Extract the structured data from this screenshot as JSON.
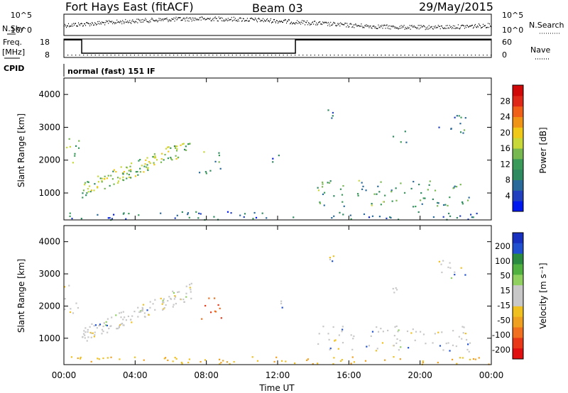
{
  "header": {
    "title": "Fort Hays East (fitACF)",
    "beam": "Beam 03",
    "date": "29/May/2015"
  },
  "labels": {
    "nsky": "N.Sky",
    "nsearch": "N.Search",
    "freq": "Freq.",
    "freq_unit": "[MHz]",
    "nave": "Nave",
    "cpid": "CPID",
    "cpid_value": "normal (fast) 151 IF"
  },
  "chart_data": [
    {
      "type": "line",
      "name": "noise-panel",
      "left_ticks": [
        "10^5",
        "10^0"
      ],
      "right_ticks": [
        "10^5",
        "10^0"
      ],
      "left_label": "N.Sky",
      "right_label": "N.Search"
    },
    {
      "type": "line",
      "name": "freq-nave-panel",
      "left_ticks": [
        "18",
        "8"
      ],
      "right_ticks": [
        "60",
        "0"
      ],
      "ylim_freq": [
        8,
        18
      ],
      "ylim_nave": [
        0,
        60
      ],
      "freq_steps": [
        {
          "x": 0.0,
          "y": 17.5
        },
        {
          "x": 1.0,
          "y": 17.5
        },
        {
          "x": 1.0,
          "y": 10.3
        },
        {
          "x": 13.0,
          "y": 10.3
        },
        {
          "x": 13.0,
          "y": 17.5
        },
        {
          "x": 24.0,
          "y": 17.5
        }
      ],
      "nave_level": 9
    },
    {
      "type": "heatmap",
      "name": "power-panel",
      "xlabel": "",
      "ylabel": "Slant Range [km]",
      "xlim": [
        0,
        24
      ],
      "ylim": [
        180,
        4500
      ],
      "yticks": [
        1000,
        2000,
        3000,
        4000
      ],
      "colorbar": {
        "label": "Power [dB]",
        "range": [
          0,
          32
        ],
        "ticks": [
          4,
          8,
          12,
          16,
          20,
          24,
          28
        ],
        "colors": [
          "#0018f0",
          "#2040c0",
          "#2a6a9a",
          "#2e8a60",
          "#3a9a5a",
          "#78b850",
          "#c8d838",
          "#f0c818",
          "#f09418",
          "#f06018",
          "#e02818",
          "#d00808"
        ]
      },
      "regions": [
        {
          "t0": 0.0,
          "t1": 0.9,
          "r0": 1800,
          "r1": 2700,
          "level": 12
        },
        {
          "t0": 1.0,
          "t1": 7.2,
          "r0": 900,
          "r1": 2700,
          "level": 14,
          "slope": true
        },
        {
          "t0": 7.5,
          "t1": 8.8,
          "r0": 1600,
          "r1": 2300,
          "level": 10
        },
        {
          "t0": 11.6,
          "t1": 12.3,
          "r0": 1800,
          "r1": 2200,
          "level": 6
        },
        {
          "t0": 14.2,
          "t1": 22.8,
          "r0": 600,
          "r1": 1400,
          "level": 10
        },
        {
          "t0": 14.6,
          "t1": 15.2,
          "r0": 3000,
          "r1": 3600,
          "level": 6
        },
        {
          "t0": 21.0,
          "t1": 22.6,
          "r0": 2800,
          "r1": 3500,
          "level": 7
        },
        {
          "t0": 18.4,
          "t1": 19.2,
          "r0": 2400,
          "r1": 2900,
          "level": 6
        },
        {
          "t0": 0.0,
          "t1": 24.0,
          "r0": 200,
          "r1": 450,
          "level": 6
        }
      ]
    },
    {
      "type": "heatmap",
      "name": "velocity-panel",
      "xlabel": "Time UT",
      "ylabel": "Slant Range [km]",
      "xlim": [
        0,
        24
      ],
      "ylim": [
        180,
        4500
      ],
      "yticks": [
        1000,
        2000,
        3000,
        4000
      ],
      "xticks": [
        "00:00",
        "04:00",
        "08:00",
        "12:00",
        "16:00",
        "20:00",
        "00:00"
      ],
      "colorbar": {
        "label": "Velocity [m s⁻¹]",
        "ticks": [
          "200",
          "100",
          "50",
          "15",
          "-15",
          "-50",
          "-100",
          "-200"
        ],
        "colors": [
          "#1830c0",
          "#2050d0",
          "#2a8a40",
          "#50b040",
          "#90d060",
          "#c8c8c8",
          "#c8c8c8",
          "#f0c020",
          "#f0a020",
          "#f07020",
          "#e83818",
          "#e01010"
        ]
      }
    }
  ]
}
